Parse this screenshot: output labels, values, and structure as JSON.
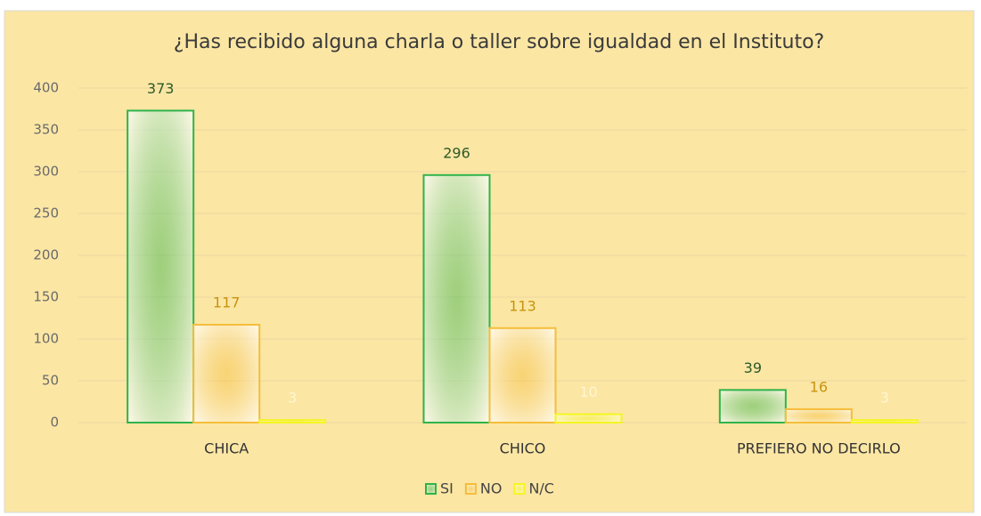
{
  "chart_data": {
    "type": "bar",
    "title": "¿Has recibido alguna charla o taller sobre igualdad en el Instituto?",
    "categories": [
      "CHICA",
      "CHICO",
      "PREFIERO NO DECIRLO"
    ],
    "series": [
      {
        "name": "SI",
        "color": "#2fb34a",
        "label_color": "#2d5a27",
        "values": [
          373,
          296,
          39
        ]
      },
      {
        "name": "NO",
        "color": "#f5bd3a",
        "label_color": "#c8940e",
        "values": [
          117,
          113,
          16
        ]
      },
      {
        "name": "N/C",
        "color": "#f5f520",
        "label_color": "#fff6d0",
        "values": [
          3,
          10,
          3
        ]
      }
    ],
    "ylim": [
      0,
      400
    ],
    "yticks": [
      0,
      50,
      100,
      150,
      200,
      250,
      300,
      350,
      400
    ],
    "grid": true,
    "legend": "bottom"
  }
}
